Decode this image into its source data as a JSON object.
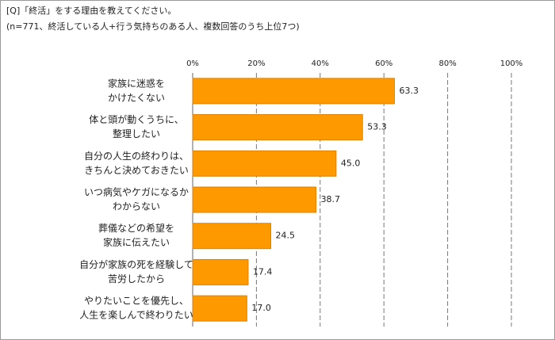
{
  "chart_data": {
    "type": "bar",
    "orientation": "horizontal",
    "title": [
      "[Q]「終活」をする理由を教えてください。",
      "(n=771、終活している人+行う気持ちのある人、複数回答のうち上位7つ)"
    ],
    "categories": [
      [
        "家族に迷惑を",
        "かけたくない"
      ],
      [
        "体と頭が動くうちに、",
        "整理したい"
      ],
      [
        "自分の人生の終わりは、",
        "きちんと決めておきたい"
      ],
      [
        "いつ病気やケガになるか",
        "わからない"
      ],
      [
        "葬儀などの希望を",
        "家族に伝えたい"
      ],
      [
        "自分が家族の死を経験して",
        "苦労したから"
      ],
      [
        "やりたいことを優先し、",
        "人生を楽しんで終わりたい"
      ]
    ],
    "values": [
      63.3,
      53.3,
      45,
      38.7,
      24.5,
      17.4,
      17
    ],
    "value_labels": [
      "63.3",
      "53.3",
      "45.0",
      "38.7",
      "24.5",
      "17.4",
      "17.0"
    ],
    "color": "#ff9900",
    "xlim": [
      0,
      100
    ],
    "xticks": [
      {
        "value": 0,
        "label": "0%"
      },
      {
        "value": 20,
        "label": "20%"
      },
      {
        "value": 40,
        "label": "40%"
      },
      {
        "value": 60,
        "label": "60%"
      },
      {
        "value": 80,
        "label": "80%"
      },
      {
        "value": 100,
        "label": "100%"
      }
    ],
    "grid": true
  }
}
